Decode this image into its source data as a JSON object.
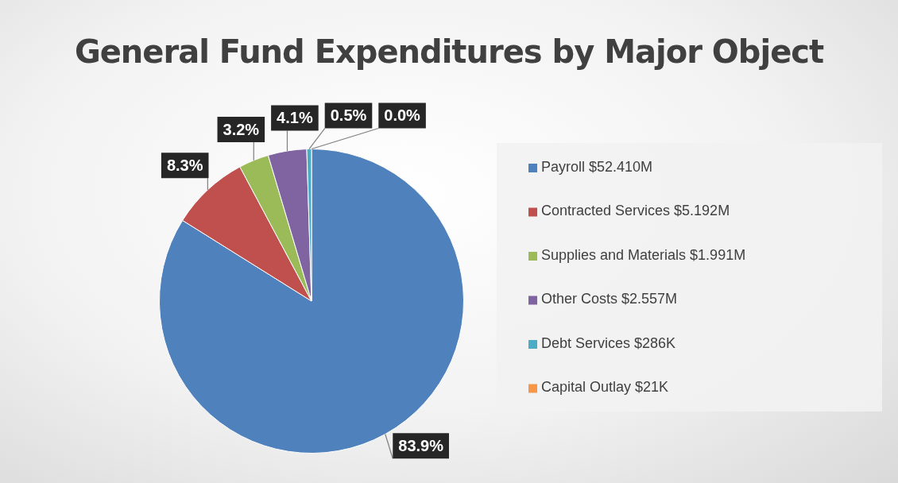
{
  "chart_data": {
    "type": "pie",
    "title": "General Fund Expenditures by Major Object",
    "categories": [
      "Payroll $52.410M",
      "Contracted Services $5.192M",
      "Supplies and Materials $1.991M",
      "Other Costs $2.557M",
      "Debt Services $286K",
      "Capital Outlay $21K"
    ],
    "values": [
      83.9,
      8.3,
      3.2,
      4.1,
      0.5,
      0.0
    ],
    "colors": [
      "#4f81bd",
      "#c0504d",
      "#9bbb59",
      "#8064a2",
      "#4bacc6",
      "#f79646"
    ],
    "value_labels": [
      "83.9%",
      "8.3%",
      "3.2%",
      "4.1%",
      "0.5%",
      "0.0%"
    ],
    "legend": "right"
  }
}
